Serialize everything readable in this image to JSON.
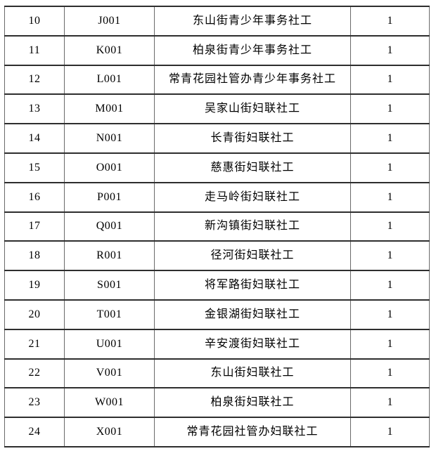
{
  "colors": {
    "background": "#ffffff",
    "text": "#000000",
    "border_horizontal": "#2e2e2e",
    "border_vertical": "#6a6a6a"
  },
  "table": {
    "field_order": [
      "index",
      "code",
      "position",
      "count"
    ],
    "rows": [
      {
        "index": "10",
        "code": "J001",
        "position": "东山街青少年事务社工",
        "count": "1"
      },
      {
        "index": "11",
        "code": "K001",
        "position": "柏泉街青少年事务社工",
        "count": "1"
      },
      {
        "index": "12",
        "code": "L001",
        "position": "常青花园社管办青少年事务社工",
        "count": "1"
      },
      {
        "index": "13",
        "code": "M001",
        "position": "吴家山街妇联社工",
        "count": "1"
      },
      {
        "index": "14",
        "code": "N001",
        "position": "长青街妇联社工",
        "count": "1"
      },
      {
        "index": "15",
        "code": "O001",
        "position": "慈惠街妇联社工",
        "count": "1"
      },
      {
        "index": "16",
        "code": "P001",
        "position": "走马岭街妇联社工",
        "count": "1"
      },
      {
        "index": "17",
        "code": "Q001",
        "position": "新沟镇街妇联社工",
        "count": "1"
      },
      {
        "index": "18",
        "code": "R001",
        "position": "径河街妇联社工",
        "count": "1"
      },
      {
        "index": "19",
        "code": "S001",
        "position": "将军路街妇联社工",
        "count": "1"
      },
      {
        "index": "20",
        "code": "T001",
        "position": "金银湖街妇联社工",
        "count": "1"
      },
      {
        "index": "21",
        "code": "U001",
        "position": "辛安渡街妇联社工",
        "count": "1"
      },
      {
        "index": "22",
        "code": "V001",
        "position": "东山街妇联社工",
        "count": "1"
      },
      {
        "index": "23",
        "code": "W001",
        "position": "柏泉街妇联社工",
        "count": "1"
      },
      {
        "index": "24",
        "code": "X001",
        "position": "常青花园社管办妇联社工",
        "count": "1"
      }
    ]
  }
}
